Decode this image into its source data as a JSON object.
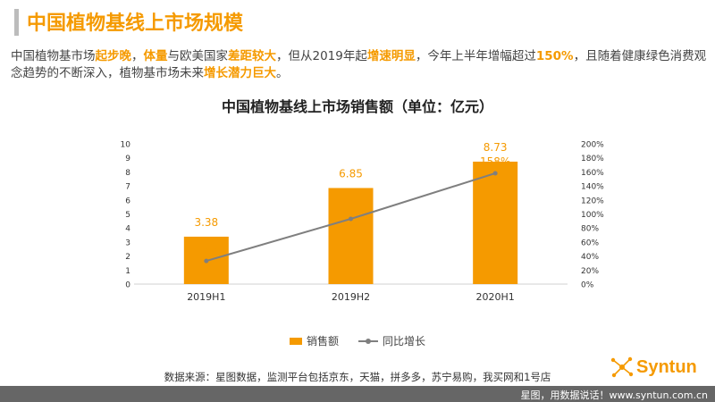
{
  "page": {
    "title": "中国植物基线上市场规模",
    "intro_parts": [
      {
        "text": "中国植物基市场",
        "hl": false
      },
      {
        "text": "起步晚",
        "hl": true
      },
      {
        "text": "，",
        "hl": false
      },
      {
        "text": "体量",
        "hl": true
      },
      {
        "text": "与欧美国家",
        "hl": false
      },
      {
        "text": "差距较大",
        "hl": true
      },
      {
        "text": "，但从2019年起",
        "hl": false
      },
      {
        "text": "增速明显",
        "hl": true
      },
      {
        "text": "，今年上半年增幅超过",
        "hl": false
      },
      {
        "text": "150%",
        "hl": true
      },
      {
        "text": "，且随着健康绿色消费观念趋势的不断深入，植物基市场未来",
        "hl": false
      },
      {
        "text": "增长潜力巨大",
        "hl": true
      },
      {
        "text": "。",
        "hl": false
      }
    ],
    "source": "数据来源：星图数据，监测平台包括京东，天猫，拼多多，苏宁易购，我买网和1号店",
    "logo_text": "Syntun",
    "footer_text": "星图，用数据说话！www.syntun.com.cn"
  },
  "colors": {
    "accent": "#f59a00",
    "line": "#7f7f7f",
    "footer": "#666666"
  },
  "icons": {
    "logo": "syntun-logo-icon"
  },
  "chart_data": {
    "type": "bar",
    "title": "中国植物基线上市场销售额（单位：亿元）",
    "categories": [
      "2019H1",
      "2019H2",
      "2020H1"
    ],
    "series": [
      {
        "name": "销售额",
        "type": "bar",
        "axis": "left",
        "values": [
          3.38,
          6.85,
          8.73
        ],
        "labels": [
          "3.38",
          "6.85",
          "8.73"
        ]
      },
      {
        "name": "同比增长",
        "type": "line",
        "axis": "right",
        "values": [
          33,
          93,
          158
        ],
        "labels": [
          "33%",
          "93%",
          "158%"
        ]
      }
    ],
    "y_left": {
      "min": 0,
      "max": 10,
      "step": 1,
      "ticks": [
        "0",
        "1",
        "2",
        "3",
        "4",
        "5",
        "6",
        "7",
        "8",
        "9",
        "10"
      ]
    },
    "y_right": {
      "min": 0,
      "max": 200,
      "step": 20,
      "ticks": [
        "0%",
        "20%",
        "40%",
        "60%",
        "80%",
        "100%",
        "120%",
        "140%",
        "160%",
        "180%",
        "200%"
      ]
    },
    "grid": false,
    "legend_position": "bottom"
  }
}
